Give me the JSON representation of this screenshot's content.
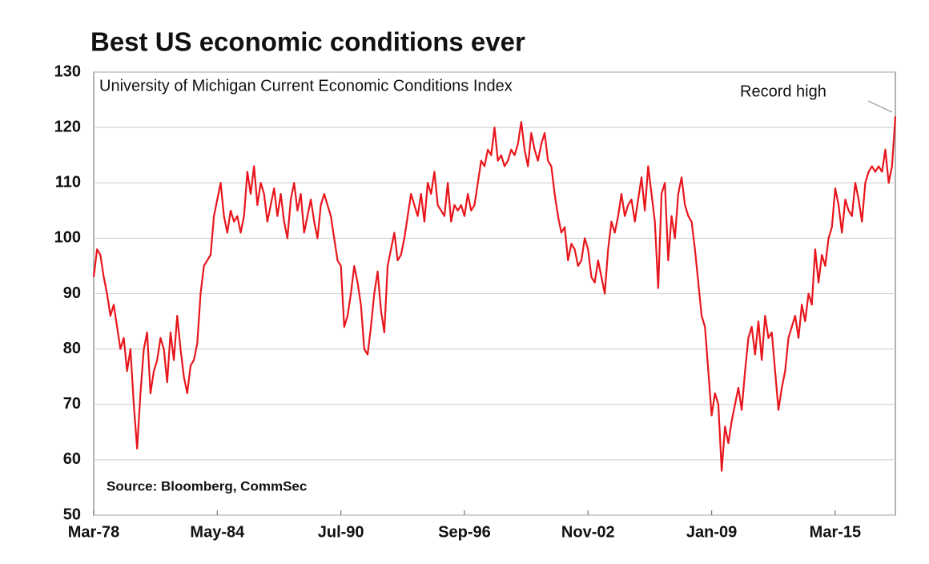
{
  "chart_data": {
    "type": "line",
    "title": "Best US economic conditions ever",
    "subtitle": "University of Michigan Current Economic Conditions Index",
    "annotation": "Record high",
    "source": "Source: Bloomberg, CommSec",
    "color": "#e8161c",
    "grid": true,
    "ylim": [
      50,
      130
    ],
    "yticks": [
      50,
      60,
      70,
      80,
      90,
      100,
      110,
      120,
      130
    ],
    "xlim": [
      "Mar-78",
      "Mar-18"
    ],
    "xticks": [
      "Mar-78",
      "May-84",
      "Jul-90",
      "Sep-96",
      "Nov-02",
      "Jan-09",
      "Mar-15"
    ],
    "x": [
      "Mar-78",
      "May-78",
      "Jul-78",
      "Sep-78",
      "Nov-78",
      "Jan-79",
      "Mar-79",
      "May-79",
      "Jul-79",
      "Sep-79",
      "Nov-79",
      "Jan-80",
      "Mar-80",
      "May-80",
      "Jul-80",
      "Sep-80",
      "Nov-80",
      "Jan-81",
      "Mar-81",
      "May-81",
      "Jul-81",
      "Sep-81",
      "Nov-81",
      "Jan-82",
      "Mar-82",
      "May-82",
      "Jul-82",
      "Sep-82",
      "Nov-82",
      "Jan-83",
      "Mar-83",
      "May-83",
      "Jul-83",
      "Sep-83",
      "Nov-83",
      "Jan-84",
      "Mar-84",
      "May-84",
      "Jul-84",
      "Sep-84",
      "Nov-84",
      "Jan-85",
      "Mar-85",
      "May-85",
      "Jul-85",
      "Sep-85",
      "Nov-85",
      "Jan-86",
      "Mar-86",
      "May-86",
      "Jul-86",
      "Sep-86",
      "Nov-86",
      "Jan-87",
      "Mar-87",
      "May-87",
      "Jul-87",
      "Sep-87",
      "Nov-87",
      "Jan-88",
      "Mar-88",
      "May-88",
      "Jul-88",
      "Sep-88",
      "Nov-88",
      "Jan-89",
      "Mar-89",
      "May-89",
      "Jul-89",
      "Sep-89",
      "Nov-89",
      "Jan-90",
      "Mar-90",
      "May-90",
      "Jul-90",
      "Sep-90",
      "Nov-90",
      "Jan-91",
      "Mar-91",
      "May-91",
      "Jul-91",
      "Sep-91",
      "Nov-91",
      "Jan-92",
      "Mar-92",
      "May-92",
      "Jul-92",
      "Sep-92",
      "Nov-92",
      "Jan-93",
      "Mar-93",
      "May-93",
      "Jul-93",
      "Sep-93",
      "Nov-93",
      "Jan-94",
      "Mar-94",
      "May-94",
      "Jul-94",
      "Sep-94",
      "Nov-94",
      "Jan-95",
      "Mar-95",
      "May-95",
      "Jul-95",
      "Sep-95",
      "Nov-95",
      "Jan-96",
      "Mar-96",
      "May-96",
      "Jul-96",
      "Sep-96",
      "Nov-96",
      "Jan-97",
      "Mar-97",
      "May-97",
      "Jul-97",
      "Sep-97",
      "Nov-97",
      "Jan-98",
      "Mar-98",
      "May-98",
      "Jul-98",
      "Sep-98",
      "Nov-98",
      "Jan-99",
      "Mar-99",
      "May-99",
      "Jul-99",
      "Sep-99",
      "Nov-99",
      "Jan-00",
      "Mar-00",
      "May-00",
      "Jul-00",
      "Sep-00",
      "Nov-00",
      "Jan-01",
      "Mar-01",
      "May-01",
      "Jul-01",
      "Sep-01",
      "Nov-01",
      "Jan-02",
      "Mar-02",
      "May-02",
      "Jul-02",
      "Sep-02",
      "Nov-02",
      "Jan-03",
      "Mar-03",
      "May-03",
      "Jul-03",
      "Sep-03",
      "Nov-03",
      "Jan-04",
      "Mar-04",
      "May-04",
      "Jul-04",
      "Sep-04",
      "Nov-04",
      "Jan-05",
      "Mar-05",
      "May-05",
      "Jul-05",
      "Sep-05",
      "Nov-05",
      "Jan-06",
      "Mar-06",
      "May-06",
      "Jul-06",
      "Sep-06",
      "Nov-06",
      "Jan-07",
      "Mar-07",
      "May-07",
      "Jul-07",
      "Sep-07",
      "Nov-07",
      "Jan-08",
      "Mar-08",
      "May-08",
      "Jul-08",
      "Sep-08",
      "Nov-08",
      "Jan-09",
      "Mar-09",
      "May-09",
      "Jul-09",
      "Sep-09",
      "Nov-09",
      "Jan-10",
      "Mar-10",
      "May-10",
      "Jul-10",
      "Sep-10",
      "Nov-10",
      "Jan-11",
      "Mar-11",
      "May-11",
      "Jul-11",
      "Sep-11",
      "Nov-11",
      "Jan-12",
      "Mar-12",
      "May-12",
      "Jul-12",
      "Sep-12",
      "Nov-12",
      "Jan-13",
      "Mar-13",
      "May-13",
      "Jul-13",
      "Sep-13",
      "Nov-13",
      "Jan-14",
      "Mar-14",
      "May-14",
      "Jul-14",
      "Sep-14",
      "Nov-14",
      "Jan-15",
      "Mar-15",
      "May-15",
      "Jul-15",
      "Sep-15",
      "Nov-15",
      "Jan-16",
      "Mar-16",
      "May-16",
      "Jul-16",
      "Sep-16",
      "Nov-16",
      "Jan-17",
      "Mar-17",
      "May-17",
      "Jul-17",
      "Sep-17",
      "Nov-17",
      "Jan-18",
      "Mar-18"
    ],
    "values": [
      93,
      98,
      97,
      93,
      90,
      86,
      88,
      84,
      80,
      82,
      76,
      80,
      70,
      62,
      72,
      80,
      83,
      72,
      76,
      78,
      82,
      80,
      74,
      83,
      78,
      86,
      80,
      75,
      72,
      77,
      78,
      81,
      90,
      95,
      96,
      97,
      104,
      107,
      110,
      104,
      101,
      105,
      103,
      104,
      101,
      104,
      112,
      108,
      113,
      106,
      110,
      108,
      103,
      106,
      109,
      104,
      108,
      103,
      100,
      107,
      110,
      105,
      108,
      101,
      104,
      107,
      103,
      100,
      106,
      108,
      106,
      104,
      100,
      96,
      95,
      84,
      86,
      90,
      95,
      92,
      88,
      80,
      79,
      84,
      90,
      94,
      87,
      83,
      95,
      98,
      101,
      96,
      97,
      100,
      104,
      108,
      106,
      104,
      108,
      103,
      110,
      108,
      112,
      106,
      105,
      104,
      110,
      103,
      106,
      105,
      106,
      104,
      108,
      105,
      106,
      110,
      114,
      113,
      116,
      115,
      120,
      114,
      115,
      113,
      114,
      116,
      115,
      117,
      121,
      116,
      113,
      119,
      116,
      114,
      117,
      119,
      114,
      113,
      108,
      104,
      101,
      102,
      96,
      99,
      98,
      95,
      96,
      100,
      98,
      93,
      92,
      96,
      93,
      90,
      98,
      103,
      101,
      104,
      108,
      104,
      106,
      107,
      103,
      107,
      111,
      105,
      113,
      108,
      103,
      91,
      108,
      110,
      96,
      104,
      100,
      108,
      111,
      106,
      104,
      103,
      98,
      92,
      86,
      84,
      76,
      68,
      72,
      70,
      58,
      66,
      63,
      67,
      70,
      73,
      69,
      76,
      82,
      84,
      79,
      85,
      78,
      86,
      82,
      83,
      76,
      69,
      73,
      76,
      82,
      84,
      86,
      82,
      88,
      85,
      90,
      88,
      98,
      92,
      97,
      95,
      100,
      102,
      109,
      106,
      101,
      107,
      105,
      104,
      110,
      107,
      103,
      110,
      112,
      113,
      112,
      113,
      112,
      116,
      110,
      113,
      122
    ]
  }
}
